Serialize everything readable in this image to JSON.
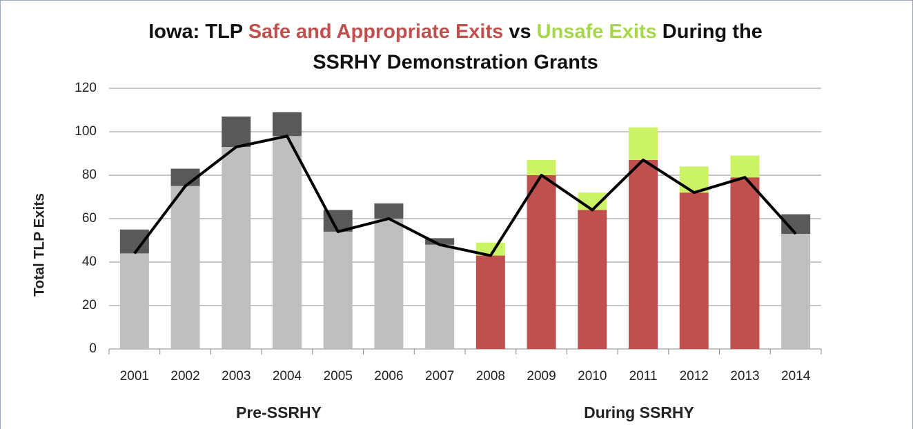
{
  "chart_data": {
    "type": "bar",
    "stacked": true,
    "title_start": "Iowa: TLP",
    "title_middle": "vs",
    "title_end": [
      "During the",
      "SSRHY Demonstration Grants"
    ],
    "y_label": "Total TLP Exits",
    "categories": [
      "2001",
      "2002",
      "2003",
      "2004",
      "2005",
      "2006",
      "2007",
      "2008",
      "2009",
      "2010",
      "2011",
      "2012",
      "2013",
      "2014"
    ],
    "series": [
      {
        "name": "Safe and Appropriate Exits",
        "color": "#c0504d",
        "colors": [
          "#bfbfbf",
          "#bfbfbf",
          "#bfbfbf",
          "#bfbfbf",
          "#bfbfbf",
          "#bfbfbf",
          "#bfbfbf",
          "#c0504d",
          "#c0504d",
          "#c0504d",
          "#c0504d",
          "#c0504d",
          "#c0504d",
          "#bfbfbf"
        ],
        "values": [
          44,
          75,
          93,
          98,
          54,
          60,
          48,
          43,
          80,
          64,
          87,
          72,
          79,
          53
        ]
      },
      {
        "name": "Unsafe Exits",
        "color": "#a6d64a",
        "colors": [
          "#595959",
          "#595959",
          "#595959",
          "#595959",
          "#595959",
          "#595959",
          "#595959",
          "#ccf266",
          "#ccf266",
          "#ccf266",
          "#ccf266",
          "#ccf266",
          "#ccf266",
          "#595959"
        ],
        "values": [
          11,
          8,
          14,
          11,
          10,
          7,
          3,
          6,
          7,
          8,
          15,
          12,
          10,
          9
        ]
      }
    ],
    "line_color": "#000000",
    "annotations": [
      {
        "text": "Pre-SSRHY",
        "color": "#8c8c8c"
      },
      {
        "text": "During SSRHY",
        "color": "#c0282d"
      }
    ],
    "ylim": [
      0,
      120
    ],
    "yticks": [
      0,
      20,
      40,
      60,
      80,
      100,
      120
    ],
    "grid": true
  }
}
